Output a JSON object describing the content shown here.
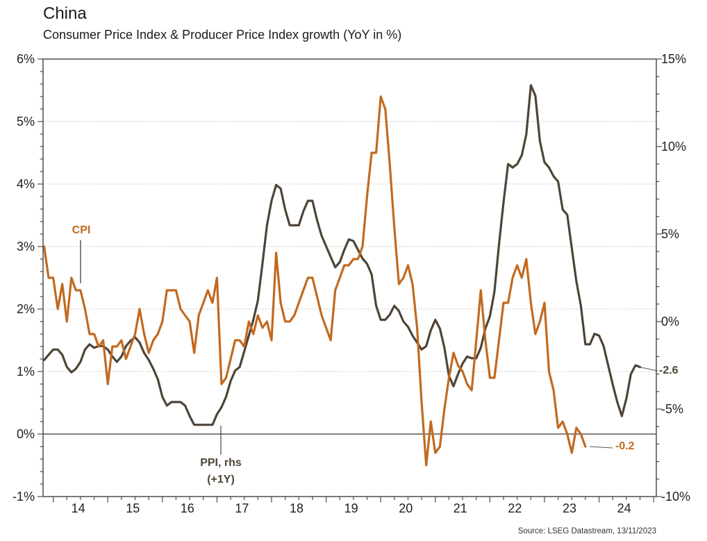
{
  "header": {
    "title": "China",
    "subtitle": "Consumer Price Index & Producer Price Index growth (YoY in %)"
  },
  "source": "Source: LSEG Datastream, 13/11/2023",
  "annotations": {
    "cpi_label": "CPI",
    "ppi_label_line1": "PPI, rhs",
    "ppi_label_line2": "(+1Y)",
    "cpi_last_value": "-0.2",
    "ppi_last_value": "-2.6"
  },
  "colors": {
    "cpi_line": "#C2691E",
    "ppi_line": "#4E4437",
    "gridline": "#b8b8b8",
    "frame": "#4d4d4d",
    "zero_line": "#333333"
  },
  "chart_data": {
    "type": "line",
    "title": "China",
    "subtitle": "Consumer Price Index & Producer Price Index growth (YoY in %)",
    "x_unit": "monthly, plotted Nov-2013 through Oct-2024",
    "grid": "dotted horizontal at each 1% of left axis",
    "legend_position": "inline annotations",
    "left_axis": {
      "min": -1,
      "max": 6,
      "ticks": [
        {
          "v": 6,
          "label": "6%"
        },
        {
          "v": 5,
          "label": "5%"
        },
        {
          "v": 4,
          "label": "4%"
        },
        {
          "v": 3,
          "label": "3%"
        },
        {
          "v": 2,
          "label": "2%"
        },
        {
          "v": 1,
          "label": "1%"
        },
        {
          "v": 0,
          "label": "0%"
        },
        {
          "v": -1,
          "label": "-1%"
        }
      ]
    },
    "right_axis": {
      "min": -10,
      "max": 15,
      "ticks": [
        {
          "v": 15,
          "label": "15%"
        },
        {
          "v": 10,
          "label": "10%"
        },
        {
          "v": 5,
          "label": "5%"
        },
        {
          "v": 0,
          "label": "0%"
        },
        {
          "v": -5,
          "label": "-5%"
        },
        {
          "v": -10,
          "label": "-10%"
        }
      ]
    },
    "x_axis": {
      "ticks": [
        {
          "year": 2014,
          "label": "14"
        },
        {
          "year": 2015,
          "label": "15"
        },
        {
          "year": 2016,
          "label": "16"
        },
        {
          "year": 2017,
          "label": "17"
        },
        {
          "year": 2018,
          "label": "18"
        },
        {
          "year": 2019,
          "label": "19"
        },
        {
          "year": 2020,
          "label": "20"
        },
        {
          "year": 2021,
          "label": "21"
        },
        {
          "year": 2022,
          "label": "22"
        },
        {
          "year": 2023,
          "label": "23"
        },
        {
          "year": 2024,
          "label": "24"
        }
      ]
    },
    "series": [
      {
        "name": "CPI",
        "axis": "left",
        "color": "#C2691E",
        "first_plotted_month": "2013-11",
        "last_plotted_month": "2023-10",
        "last_value": -0.2,
        "values": [
          3.0,
          2.5,
          2.5,
          2.0,
          2.4,
          1.8,
          2.5,
          2.3,
          2.3,
          2.0,
          1.6,
          1.6,
          1.4,
          1.5,
          0.8,
          1.4,
          1.4,
          1.5,
          1.2,
          1.4,
          1.6,
          2.0,
          1.6,
          1.3,
          1.5,
          1.6,
          1.8,
          2.3,
          2.3,
          2.3,
          2.0,
          1.9,
          1.8,
          1.3,
          1.9,
          2.1,
          2.3,
          2.1,
          2.5,
          0.8,
          0.9,
          1.2,
          1.5,
          1.5,
          1.4,
          1.8,
          1.6,
          1.9,
          1.7,
          1.8,
          1.5,
          2.9,
          2.1,
          1.8,
          1.8,
          1.9,
          2.1,
          2.3,
          2.5,
          2.5,
          2.2,
          1.9,
          1.7,
          1.5,
          2.3,
          2.5,
          2.7,
          2.7,
          2.8,
          2.8,
          3.0,
          3.8,
          4.5,
          4.5,
          5.4,
          5.2,
          4.3,
          3.3,
          2.4,
          2.5,
          2.7,
          2.4,
          1.7,
          0.5,
          -0.5,
          0.2,
          -0.3,
          -0.2,
          0.4,
          0.9,
          1.3,
          1.1,
          1.0,
          0.8,
          0.7,
          1.5,
          2.3,
          1.5,
          0.9,
          0.9,
          1.5,
          2.1,
          2.1,
          2.5,
          2.7,
          2.5,
          2.8,
          2.1,
          1.6,
          1.8,
          2.1,
          1.0,
          0.7,
          0.1,
          0.2,
          0.0,
          -0.3,
          0.1,
          0.0,
          -0.2
        ]
      },
      {
        "name": "PPI, rhs (+1Y)",
        "axis": "right",
        "color": "#4E4437",
        "shift": "+1 year (actual 2012-11 .. 2023-10 plotted 2013-11 .. 2024-10)",
        "first_plotted_month": "2013-11",
        "last_plotted_month": "2024-10",
        "last_value": -2.6,
        "values": [
          -2.2,
          -1.9,
          -1.6,
          -1.6,
          -1.9,
          -2.6,
          -2.9,
          -2.7,
          -2.3,
          -1.6,
          -1.3,
          -1.5,
          -1.4,
          -1.4,
          -1.6,
          -2.0,
          -2.3,
          -2.0,
          -1.4,
          -1.1,
          -0.9,
          -1.2,
          -1.8,
          -2.2,
          -2.7,
          -3.3,
          -4.3,
          -4.8,
          -4.6,
          -4.6,
          -4.6,
          -4.8,
          -5.4,
          -5.9,
          -5.9,
          -5.9,
          -5.9,
          -5.9,
          -5.3,
          -4.9,
          -4.3,
          -3.4,
          -2.8,
          -2.6,
          -1.7,
          -0.8,
          0.1,
          1.2,
          3.3,
          5.5,
          6.9,
          7.8,
          7.6,
          6.4,
          5.5,
          5.5,
          5.5,
          6.3,
          6.9,
          6.9,
          5.8,
          4.9,
          4.3,
          3.7,
          3.1,
          3.4,
          4.1,
          4.7,
          4.6,
          4.1,
          3.6,
          3.3,
          2.7,
          0.9,
          0.1,
          0.1,
          0.4,
          0.9,
          0.6,
          0.0,
          -0.3,
          -0.8,
          -1.2,
          -1.6,
          -1.4,
          -0.5,
          0.1,
          -0.4,
          -1.5,
          -3.1,
          -3.7,
          -3.0,
          -2.4,
          -2.0,
          -2.1,
          -2.1,
          -1.5,
          -0.4,
          0.3,
          1.7,
          4.4,
          6.8,
          9.0,
          8.8,
          9.0,
          9.5,
          10.7,
          13.5,
          12.9,
          10.3,
          9.1,
          8.8,
          8.3,
          8.0,
          6.4,
          6.1,
          4.2,
          2.3,
          0.9,
          -1.3,
          -1.3,
          -0.7,
          -0.8,
          -1.4,
          -2.5,
          -3.6,
          -4.6,
          -5.4,
          -4.4,
          -3.0,
          -2.5,
          -2.6
        ]
      }
    ]
  }
}
